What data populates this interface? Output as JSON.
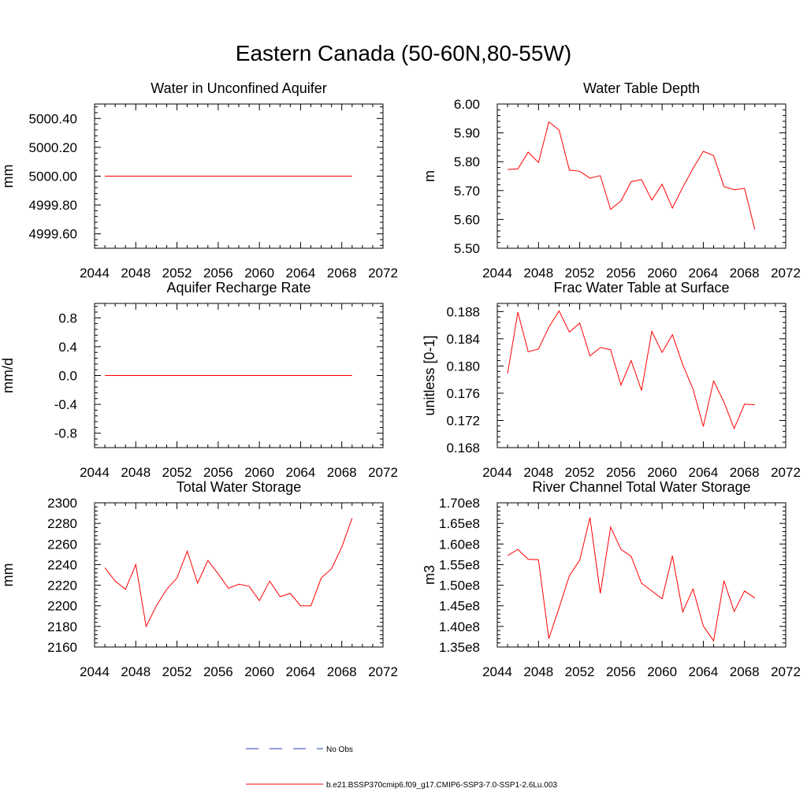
{
  "title": "Eastern Canada (50-60N,80-55W)",
  "legend": {
    "entries": [
      {
        "label": "No Obs",
        "color": "#1f3fbf",
        "dash": true
      },
      {
        "label": "b.e21.BSSP370cmip6.f09_g17.CMIP6-SSP3-7.0-SSP1-2.6Lu.003",
        "color": "#ff0000",
        "dash": false
      }
    ]
  },
  "chart_data": [
    {
      "type": "line",
      "title": "Water in Unconfined Aquifer",
      "ylabel": "mm",
      "xlim": [
        2044,
        2072
      ],
      "ylim": [
        4999.5,
        5000.5
      ],
      "x_ticks": [
        2044,
        2048,
        2052,
        2056,
        2060,
        2064,
        2068,
        2072
      ],
      "y_ticks": [
        4999.6,
        4999.8,
        5000.0,
        5000.2,
        5000.4
      ],
      "y_tick_labels": [
        "4999.60",
        "4999.80",
        "5000.00",
        "5000.20",
        "5000.40"
      ],
      "series": [
        {
          "color": "#ff0000",
          "x": [
            2045,
            2046,
            2047,
            2048,
            2049,
            2050,
            2051,
            2052,
            2053,
            2054,
            2055,
            2056,
            2057,
            2058,
            2059,
            2060,
            2061,
            2062,
            2063,
            2064,
            2065,
            2066,
            2067,
            2068,
            2069
          ],
          "y": [
            5000,
            5000,
            5000,
            5000,
            5000,
            5000,
            5000,
            5000,
            5000,
            5000,
            5000,
            5000,
            5000,
            5000,
            5000,
            5000,
            5000,
            5000,
            5000,
            5000,
            5000,
            5000,
            5000,
            5000,
            5000
          ]
        }
      ]
    },
    {
      "type": "line",
      "title": "Water Table Depth",
      "ylabel": "m",
      "xlim": [
        2044,
        2072
      ],
      "ylim": [
        5.5,
        6.0
      ],
      "x_ticks": [
        2044,
        2048,
        2052,
        2056,
        2060,
        2064,
        2068,
        2072
      ],
      "y_ticks": [
        5.5,
        5.6,
        5.7,
        5.8,
        5.9,
        6.0
      ],
      "y_tick_labels": [
        "5.50",
        "5.60",
        "5.70",
        "5.80",
        "5.90",
        "6.00"
      ],
      "series": [
        {
          "color": "#ff0000",
          "x": [
            2045,
            2046,
            2047,
            2048,
            2049,
            2050,
            2051,
            2052,
            2053,
            2054,
            2055,
            2056,
            2057,
            2058,
            2059,
            2060,
            2061,
            2062,
            2063,
            2064,
            2065,
            2066,
            2067,
            2068,
            2069
          ],
          "y": [
            5.773,
            5.775,
            5.833,
            5.797,
            5.938,
            5.91,
            5.771,
            5.767,
            5.743,
            5.752,
            5.635,
            5.664,
            5.731,
            5.738,
            5.667,
            5.722,
            5.639,
            5.711,
            5.777,
            5.836,
            5.821,
            5.714,
            5.703,
            5.708,
            5.565
          ]
        }
      ]
    },
    {
      "type": "line",
      "title": "Aquifer Recharge Rate",
      "ylabel": "mm/d",
      "xlim": [
        2044,
        2072
      ],
      "ylim": [
        -1.0,
        1.0
      ],
      "x_ticks": [
        2044,
        2048,
        2052,
        2056,
        2060,
        2064,
        2068,
        2072
      ],
      "y_ticks": [
        -0.8,
        -0.4,
        0.0,
        0.4,
        0.8
      ],
      "y_tick_labels": [
        "-0.8",
        "-0.4",
        "0.0",
        "0.4",
        "0.8"
      ],
      "series": [
        {
          "color": "#ff0000",
          "x": [
            2045,
            2046,
            2047,
            2048,
            2049,
            2050,
            2051,
            2052,
            2053,
            2054,
            2055,
            2056,
            2057,
            2058,
            2059,
            2060,
            2061,
            2062,
            2063,
            2064,
            2065,
            2066,
            2067,
            2068,
            2069
          ],
          "y": [
            0,
            0,
            0,
            0,
            0,
            0,
            0,
            0,
            0,
            0,
            0,
            0,
            0,
            0,
            0,
            0,
            0,
            0,
            0,
            0,
            0,
            0,
            0,
            0,
            0
          ]
        }
      ]
    },
    {
      "type": "line",
      "title": "Frac Water Table at Surface",
      "ylabel": "unitless [0-1]",
      "xlim": [
        2044,
        2072
      ],
      "ylim": [
        0.168,
        0.1892
      ],
      "x_ticks": [
        2044,
        2048,
        2052,
        2056,
        2060,
        2064,
        2068,
        2072
      ],
      "y_ticks": [
        0.168,
        0.172,
        0.176,
        0.18,
        0.184,
        0.188
      ],
      "y_tick_labels": [
        "0.168",
        "0.172",
        "0.176",
        "0.180",
        "0.184",
        "0.188"
      ],
      "series": [
        {
          "color": "#ff0000",
          "x": [
            2045,
            2046,
            2047,
            2048,
            2049,
            2050,
            2051,
            2052,
            2053,
            2054,
            2055,
            2056,
            2057,
            2058,
            2059,
            2060,
            2061,
            2062,
            2063,
            2064,
            2065,
            2066,
            2067,
            2068,
            2069
          ],
          "y": [
            0.1789,
            0.1879,
            0.1821,
            0.1825,
            0.1857,
            0.1881,
            0.185,
            0.1863,
            0.1815,
            0.1827,
            0.1824,
            0.1772,
            0.1808,
            0.1764,
            0.1851,
            0.182,
            0.1846,
            0.1802,
            0.1766,
            0.1711,
            0.1778,
            0.1747,
            0.1708,
            0.1744,
            0.1743
          ]
        }
      ]
    },
    {
      "type": "line",
      "title": "Total Water Storage",
      "ylabel": "mm",
      "xlim": [
        2044,
        2072
      ],
      "ylim": [
        2160,
        2300
      ],
      "x_ticks": [
        2044,
        2048,
        2052,
        2056,
        2060,
        2064,
        2068,
        2072
      ],
      "y_ticks": [
        2160,
        2180,
        2200,
        2220,
        2240,
        2260,
        2280,
        2300
      ],
      "y_tick_labels": [
        "2160",
        "2180",
        "2200",
        "2220",
        "2240",
        "2260",
        "2280",
        "2300"
      ],
      "series": [
        {
          "color": "#ff0000",
          "x": [
            2045,
            2046,
            2047,
            2048,
            2049,
            2050,
            2051,
            2052,
            2053,
            2054,
            2055,
            2056,
            2057,
            2058,
            2059,
            2060,
            2061,
            2062,
            2063,
            2064,
            2065,
            2066,
            2067,
            2068,
            2069
          ],
          "y": [
            2237,
            2224,
            2216,
            2240,
            2180,
            2200,
            2216,
            2227,
            2253,
            2222,
            2244,
            2231,
            2217,
            2221,
            2219,
            2205,
            2224,
            2209,
            2212,
            2200,
            2200,
            2227,
            2236,
            2257,
            2285
          ]
        }
      ]
    },
    {
      "type": "line",
      "title": "River Channel Total Water Storage",
      "ylabel": "m3",
      "xlim": [
        2044,
        2072
      ],
      "ylim": [
        135000000.0,
        170000000.0
      ],
      "x_ticks": [
        2044,
        2048,
        2052,
        2056,
        2060,
        2064,
        2068,
        2072
      ],
      "y_ticks": [
        135000000.0,
        140000000.0,
        145000000.0,
        150000000.0,
        155000000.0,
        160000000.0,
        165000000.0,
        170000000.0
      ],
      "y_tick_labels": [
        "1.35e8",
        "1.40e8",
        "1.45e8",
        "1.50e8",
        "1.55e8",
        "1.60e8",
        "1.65e8",
        "1.70e8"
      ],
      "series": [
        {
          "color": "#ff0000",
          "x": [
            2045,
            2046,
            2047,
            2048,
            2049,
            2050,
            2051,
            2052,
            2053,
            2054,
            2055,
            2056,
            2057,
            2058,
            2059,
            2060,
            2061,
            2062,
            2063,
            2064,
            2065,
            2066,
            2067,
            2068,
            2069
          ],
          "y": [
            157200000.0,
            158700000.0,
            156300000.0,
            156200000.0,
            137000000.0,
            144500000.0,
            152300000.0,
            156100000.0,
            166400000.0,
            148000000.0,
            164100000.0,
            158700000.0,
            157000000.0,
            150500000.0,
            148600000.0,
            146700000.0,
            157100000.0,
            143500000.0,
            149100000.0,
            140100000.0,
            136500000.0,
            151100000.0,
            143600000.0,
            148600000.0,
            146900000.0
          ]
        }
      ]
    }
  ]
}
